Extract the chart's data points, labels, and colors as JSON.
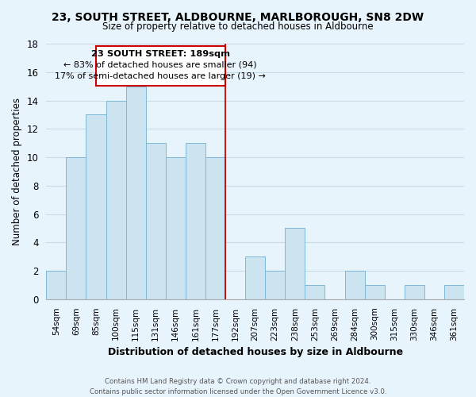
{
  "title": "23, SOUTH STREET, ALDBOURNE, MARLBOROUGH, SN8 2DW",
  "subtitle": "Size of property relative to detached houses in Aldbourne",
  "xlabel": "Distribution of detached houses by size in Aldbourne",
  "ylabel": "Number of detached properties",
  "bin_labels": [
    "54sqm",
    "69sqm",
    "85sqm",
    "100sqm",
    "115sqm",
    "131sqm",
    "146sqm",
    "161sqm",
    "177sqm",
    "192sqm",
    "207sqm",
    "223sqm",
    "238sqm",
    "253sqm",
    "269sqm",
    "284sqm",
    "300sqm",
    "315sqm",
    "330sqm",
    "346sqm",
    "361sqm"
  ],
  "bar_values": [
    2,
    10,
    13,
    14,
    15,
    11,
    10,
    11,
    10,
    0,
    3,
    2,
    5,
    1,
    0,
    2,
    1,
    0,
    1,
    0,
    1
  ],
  "bar_color": "#cce4f0",
  "bar_edge_color": "#7db8d4",
  "background_color": "#e8f4fc",
  "grid_color": "#c8dce8",
  "marker_line_color": "#cc0000",
  "annotation_line1": "23 SOUTH STREET: 189sqm",
  "annotation_line2": "← 83% of detached houses are smaller (94)",
  "annotation_line3": "17% of semi-detached houses are larger (19) →",
  "ylim": [
    0,
    18
  ],
  "yticks": [
    0,
    2,
    4,
    6,
    8,
    10,
    12,
    14,
    16,
    18
  ],
  "footer_line1": "Contains HM Land Registry data © Crown copyright and database right 2024.",
  "footer_line2": "Contains public sector information licensed under the Open Government Licence v3.0."
}
